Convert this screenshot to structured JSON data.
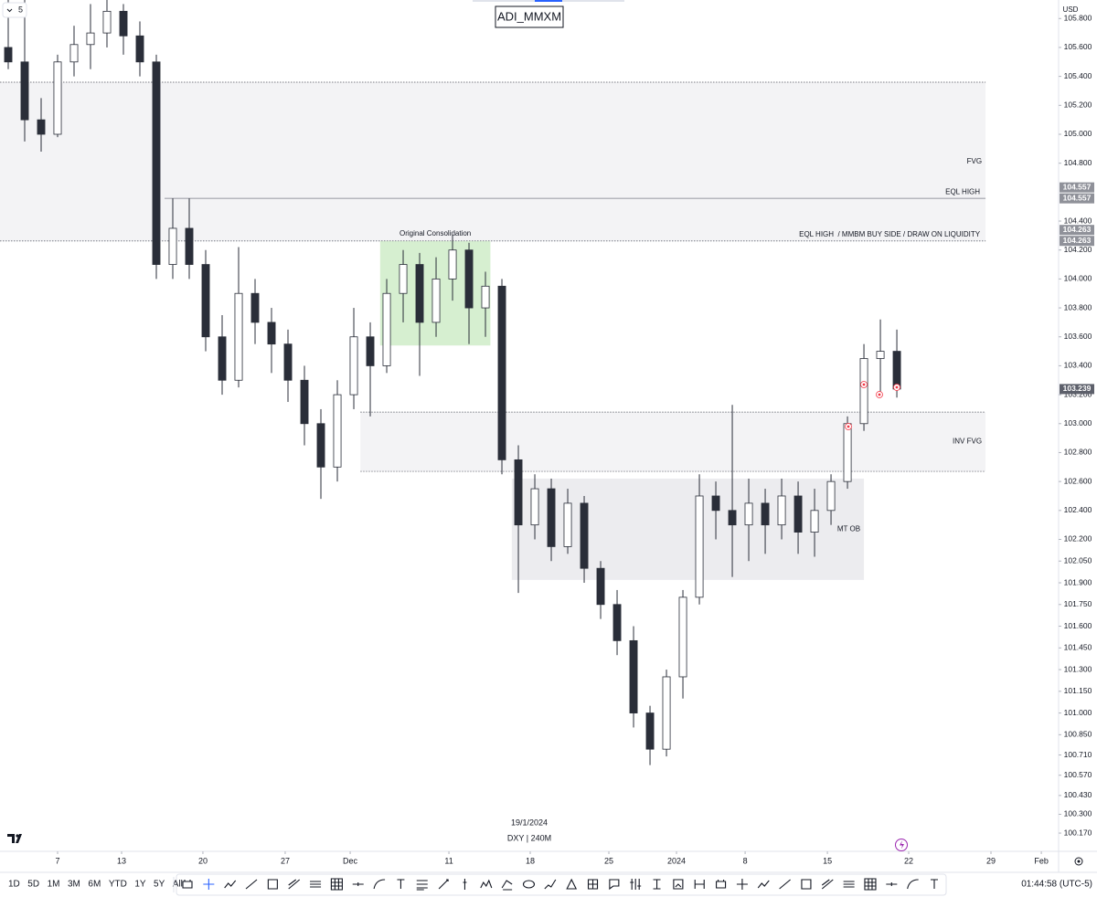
{
  "chart_data": {
    "type": "candlestick",
    "title": "ADI_MMXM",
    "interval": "5",
    "currency": "USD",
    "date_label": "19/1/2024",
    "symbol_info": "DXY | 240M",
    "up_color": "#ffffff",
    "down_color": "#2a2e39",
    "wick_color": "#2a2e39",
    "grid": false,
    "xlim": [
      -3.5,
      60.83
    ],
    "ylim": [
      100.044,
      105.928
    ],
    "x": [
      -3,
      -2,
      -1,
      0,
      1,
      2,
      3,
      4,
      5,
      6,
      7,
      8,
      9,
      10,
      11,
      12,
      13,
      14,
      15,
      16,
      17,
      18,
      19,
      20,
      21,
      22,
      23,
      24,
      25,
      26,
      27,
      28,
      29,
      30,
      31,
      32,
      33,
      34,
      35,
      36,
      37,
      38,
      39,
      40,
      41,
      42,
      43,
      44,
      45,
      46,
      47,
      48,
      49,
      50,
      51
    ],
    "open": [
      105.6,
      105.5,
      105.1,
      105.0,
      105.5,
      105.62,
      105.7,
      105.85,
      105.68,
      105.5,
      104.1,
      104.35,
      104.1,
      103.6,
      103.3,
      103.9,
      103.7,
      103.55,
      103.3,
      103.0,
      102.7,
      103.2,
      103.6,
      103.4,
      103.9,
      104.1,
      103.7,
      104.0,
      104.2,
      103.8,
      103.95,
      102.75,
      102.3,
      102.55,
      102.15,
      102.45,
      102.0,
      101.75,
      101.5,
      101.0,
      100.75,
      101.25,
      101.8,
      102.5,
      102.4,
      102.3,
      102.45,
      102.3,
      102.5,
      102.25,
      102.4,
      102.6,
      103.0,
      103.45,
      103.5
    ],
    "high": [
      105.93,
      105.93,
      105.25,
      105.55,
      105.75,
      105.9,
      105.93,
      105.9,
      105.78,
      105.55,
      104.557,
      104.557,
      104.2,
      103.75,
      104.22,
      104.0,
      103.8,
      103.65,
      103.4,
      103.1,
      103.3,
      103.8,
      103.7,
      104.0,
      104.2,
      104.18,
      104.15,
      104.3,
      104.25,
      104.05,
      104.0,
      102.85,
      102.65,
      102.62,
      102.55,
      102.5,
      102.05,
      101.85,
      101.6,
      101.05,
      101.3,
      101.85,
      102.65,
      102.6,
      103.13,
      102.62,
      102.55,
      102.62,
      102.6,
      102.55,
      102.65,
      103.05,
      103.55,
      103.72,
      103.65
    ],
    "low": [
      105.45,
      104.95,
      104.88,
      104.98,
      105.4,
      105.45,
      105.6,
      105.55,
      105.4,
      104.0,
      104.0,
      104.0,
      103.5,
      103.2,
      103.25,
      103.55,
      103.35,
      103.15,
      102.85,
      102.48,
      102.6,
      103.1,
      103.05,
      103.35,
      103.7,
      103.33,
      103.6,
      103.85,
      103.55,
      103.6,
      102.65,
      101.83,
      102.2,
      102.05,
      102.1,
      101.9,
      101.65,
      101.4,
      100.9,
      100.64,
      100.7,
      101.1,
      101.75,
      102.2,
      101.94,
      102.05,
      102.1,
      102.2,
      102.1,
      102.08,
      102.3,
      102.55,
      102.95,
      103.2,
      103.18
    ],
    "close": [
      105.5,
      105.1,
      105.0,
      105.5,
      105.62,
      105.7,
      105.85,
      105.68,
      105.5,
      104.1,
      104.35,
      104.1,
      103.6,
      103.3,
      103.9,
      103.7,
      103.55,
      103.3,
      103.0,
      102.7,
      103.2,
      103.6,
      103.4,
      103.9,
      104.1,
      103.7,
      104.0,
      104.2,
      103.8,
      103.95,
      102.75,
      102.3,
      102.55,
      102.15,
      102.45,
      102.0,
      101.75,
      101.5,
      101.0,
      100.75,
      101.25,
      101.8,
      102.5,
      102.4,
      102.3,
      102.45,
      102.3,
      102.5,
      102.25,
      102.4,
      102.6,
      103.0,
      103.45,
      103.5,
      103.239
    ],
    "xticks": [
      {
        "value": 0,
        "label": "7"
      },
      {
        "value": 3.89,
        "label": "13"
      },
      {
        "value": 8.83,
        "label": "20"
      },
      {
        "value": 13.83,
        "label": "27"
      },
      {
        "value": 17.78,
        "label": "Dec"
      },
      {
        "value": 23.78,
        "label": "11"
      },
      {
        "value": 28.72,
        "label": "18"
      },
      {
        "value": 33.5,
        "label": "25"
      },
      {
        "value": 37.61,
        "label": "2024"
      },
      {
        "value": 41.78,
        "label": "8"
      },
      {
        "value": 46.78,
        "label": "15"
      },
      {
        "value": 51.72,
        "label": "22"
      },
      {
        "value": 56.72,
        "label": "29"
      },
      {
        "value": 59.78,
        "label": "Feb"
      }
    ],
    "yticks": [
      {
        "value": 105.8,
        "label": "105.800"
      },
      {
        "value": 105.6,
        "label": "105.600"
      },
      {
        "value": 105.4,
        "label": "105.400"
      },
      {
        "value": 105.2,
        "label": "105.200"
      },
      {
        "value": 105.0,
        "label": "105.000"
      },
      {
        "value": 104.8,
        "label": "104.800"
      },
      {
        "value": 104.4,
        "label": "104.400"
      },
      {
        "value": 104.2,
        "label": "104.200"
      },
      {
        "value": 104.0,
        "label": "104.000"
      },
      {
        "value": 103.8,
        "label": "103.800"
      },
      {
        "value": 103.6,
        "label": "103.600"
      },
      {
        "value": 103.4,
        "label": "103.400"
      },
      {
        "value": 103.2,
        "label": "103.200"
      },
      {
        "value": 103.0,
        "label": "103.000"
      },
      {
        "value": 102.8,
        "label": "102.800"
      },
      {
        "value": 102.6,
        "label": "102.600"
      },
      {
        "value": 102.4,
        "label": "102.400"
      },
      {
        "value": 102.2,
        "label": "102.200"
      },
      {
        "value": 102.05,
        "label": "102.050"
      },
      {
        "value": 101.9,
        "label": "101.900"
      },
      {
        "value": 101.75,
        "label": "101.750"
      },
      {
        "value": 101.6,
        "label": "101.600"
      },
      {
        "value": 101.45,
        "label": "101.450"
      },
      {
        "value": 101.3,
        "label": "101.300"
      },
      {
        "value": 101.15,
        "label": "101.150"
      },
      {
        "value": 101.0,
        "label": "101.000"
      },
      {
        "value": 100.85,
        "label": "100.850"
      },
      {
        "value": 100.71,
        "label": "100.710"
      },
      {
        "value": 100.57,
        "label": "100.570"
      },
      {
        "value": 100.43,
        "label": "100.430"
      },
      {
        "value": 100.3,
        "label": "100.300"
      },
      {
        "value": 100.17,
        "label": "100.170"
      }
    ],
    "zones": [
      {
        "label": "FVG",
        "y_top": 105.36,
        "y_bottom": 104.263,
        "x_start": -3.5,
        "x_end": 56.39,
        "color": "#f3f3f5",
        "border": true,
        "label_pos": "right"
      },
      {
        "label": "INV FVG",
        "y_top": 103.08,
        "y_bottom": 102.67,
        "x_start": 18.4,
        "x_end": 56.39,
        "color": "#f3f3f5",
        "border": true,
        "label_pos": "right"
      },
      {
        "label": "MT OB",
        "y_top": 102.62,
        "y_bottom": 101.92,
        "x_start": 27.6,
        "x_end": 49.0,
        "color": "#ececef",
        "border": false,
        "label_pos": "right"
      },
      {
        "label": "Original Consolidation",
        "y_top": 104.263,
        "y_bottom": 103.54,
        "x_start": 19.6,
        "x_end": 26.3,
        "color": "#d6efd0",
        "border": false,
        "label_pos": "top"
      }
    ],
    "levels": [
      {
        "label": "EQL HIGH",
        "value": 104.557,
        "x_start": 6.5,
        "x_end": 56.39,
        "style": "solid"
      },
      {
        "label": "EQL HIGH  / MMBM BUY SIDE / DRAW ON LIQUIDITY",
        "value": 104.263,
        "x_start": -3.5,
        "x_end": 56.39,
        "style": "dotted"
      }
    ],
    "price_labels": [
      {
        "value": 104.557,
        "color": "#8f9199"
      },
      {
        "value": 104.557,
        "color": "#8f9199"
      },
      {
        "value": 104.263,
        "color": "#8f9199"
      },
      {
        "value": 104.263,
        "color": "#8f9199"
      },
      {
        "value": 103.239,
        "color": "#5d606b"
      }
    ]
  },
  "toolbar": {
    "ranges": [
      "1D",
      "5D",
      "1M",
      "3M",
      "6M",
      "YTD",
      "1Y",
      "5Y",
      "All"
    ],
    "clock": "01:44:58 (UTC-5)"
  }
}
